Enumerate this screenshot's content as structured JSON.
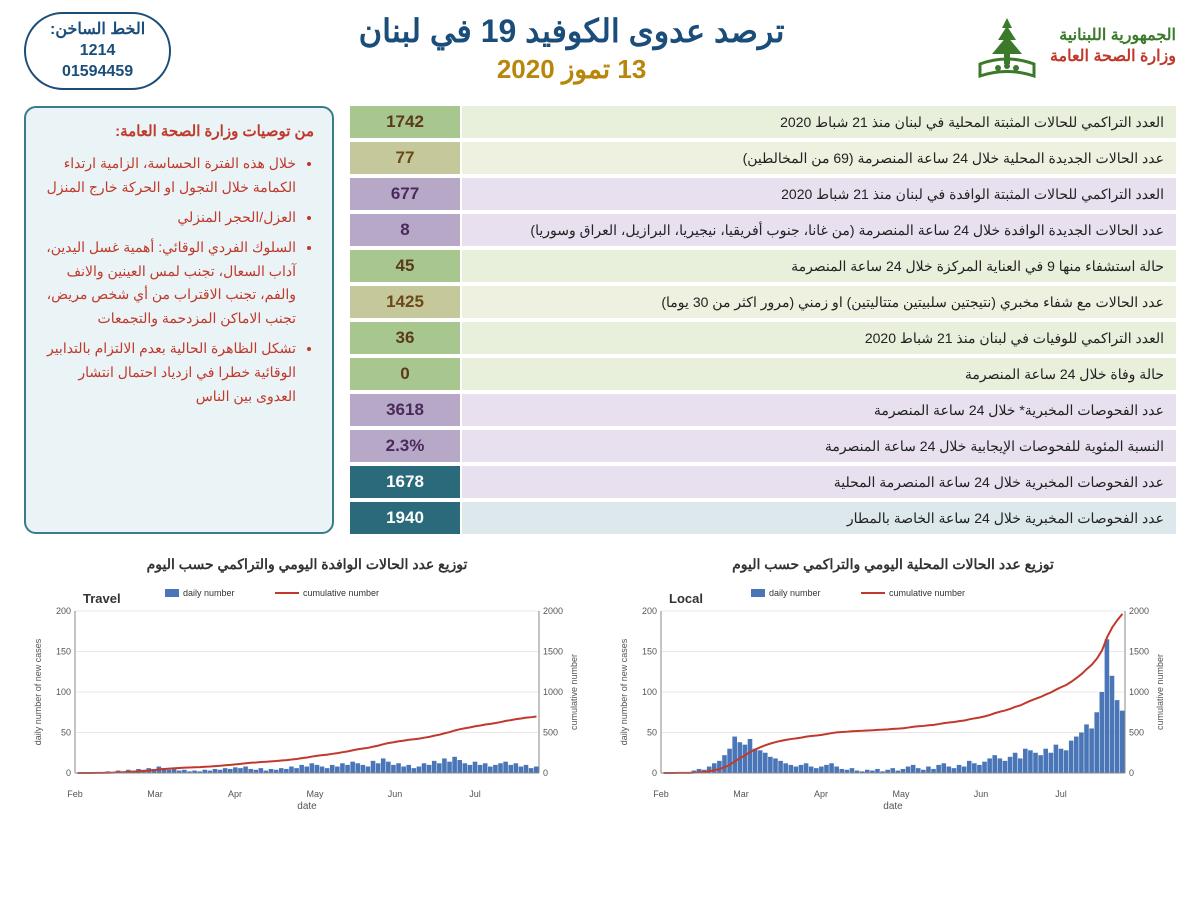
{
  "header": {
    "org_line1": "الجمهورية اللبنانية",
    "org_line2": "وزارة الصحة العامة",
    "title": "ترصد عدوى الكوفيد 19 في لبنان",
    "date": "13 تموز 2020",
    "hotline_label": "الخط الساخن:",
    "hotline_n1": "1214",
    "hotline_n2": "01594459",
    "logo_color": "#3b7a2a"
  },
  "stats": [
    {
      "val": "1742",
      "lbl": "العدد التراكمي للحالات المثبتة المحلية في لبنان منذ 21 شباط 2020",
      "vc": "c-green-d",
      "lc": "c-green-l"
    },
    {
      "val": "77",
      "lbl": "عدد الحالات الجديدة المحلية خلال 24 ساعة المنصرمة  (69 من المخالطين)",
      "vc": "c-olive-d",
      "lc": "c-olive-l"
    },
    {
      "val": "677",
      "lbl": "العدد التراكمي للحالات المثبتة الوافدة في لبنان منذ 21 شباط 2020",
      "vc": "c-purple-d",
      "lc": "c-purple-l"
    },
    {
      "val": "8",
      "lbl": "عدد الحالات الجديدة الوافدة خلال 24 ساعة المنصرمة (من غانا، جنوب أفريقيا، نيجيريا، البرازيل، العراق وسوريا)",
      "vc": "c-purple-d",
      "lc": "c-purple-l"
    },
    {
      "val": "45",
      "lbl": "حالة استشفاء منها  9 في العناية المركزة خلال 24 ساعة المنصرمة",
      "vc": "c-green-d",
      "lc": "c-green-l"
    },
    {
      "val": "1425",
      "lbl": "عدد الحالات مع شفاء مخبري (نتيجتين سلبيتين متتاليتين) او زمني (مرور اكثر من 30 يوما)",
      "vc": "c-olive-d",
      "lc": "c-olive-l"
    },
    {
      "val": "36",
      "lbl": "العدد التراكمي للوفيات في لبنان منذ 21 شباط  2020",
      "vc": "c-green-d",
      "lc": "c-green-l"
    },
    {
      "val": "0",
      "lbl": "حالة وفاة خلال 24 ساعة المنصرمة",
      "vc": "c-green-d",
      "lc": "c-green-l"
    },
    {
      "val": "3618",
      "lbl": "عدد الفحوصات المخبرية* خلال 24 ساعة المنصرمة",
      "vc": "c-purple-d",
      "lc": "c-purple-l"
    },
    {
      "val": "2.3%",
      "lbl": "النسبة المئوية للفحوصات الإيجابية خلال 24 ساعة المنصرمة",
      "vc": "c-purple-d",
      "lc": "c-purple-l"
    },
    {
      "val": "1678",
      "lbl": "عدد الفحوصات المخبرية خلال 24 ساعة المنصرمة المحلية",
      "vc": "c-teal-d",
      "lc": "c-purple-l"
    },
    {
      "val": "1940",
      "lbl": "عدد الفحوصات المخبرية خلال 24 ساعة الخاصة بالمطار",
      "vc": "c-teal-d",
      "lc": "c-teal-l"
    }
  ],
  "tips": {
    "title": "من توصيات وزارة الصحة العامة:",
    "items": [
      "خلال هذه الفترة الحساسة، الزامية ارتداء الكمامة خلال التجول او الحركة خارج المنزل",
      "العزل/الحجر المنزلي",
      "السلوك الفردي الوقائي: أهمية غسل اليدين، آداب السعال، تجنب لمس العينين والانف والفم، تجنب الاقتراب من أي شخص مريض، تجنب الاماكن المزدحمة والتجمعات",
      "تشكل الظاهرة الحالية بعدم الالتزام بالتدابير الوقائية خطرا في ازدياد احتمال انتشار العدوى بين الناس"
    ]
  },
  "charts": {
    "right_title": "توزيع عدد الحالات المحلية اليومي والتراكمي حسب اليوم",
    "left_title": "توزيع عدد الحالات الوافدة اليومي والتراكمي حسب اليوم",
    "legend_daily": "daily number",
    "legend_cum": "cumulative number",
    "panel_local": "Local",
    "panel_travel": "Travel",
    "y1_label": "daily number of new cases",
    "y2_label": "cumulative number",
    "x_label": "date",
    "y1_ticks": [
      0,
      50,
      100,
      150,
      200
    ],
    "y2_ticks": [
      0,
      500,
      1000,
      1500,
      2000
    ],
    "x_months": [
      "Feb",
      "Mar",
      "Apr",
      "May",
      "Jun",
      "Jul"
    ],
    "bar_color": "#4a76b8",
    "line_color": "#c0392b",
    "grid_color": "#d0d0d0",
    "axis_fontsize": 9,
    "local": {
      "daily": [
        0,
        0,
        0,
        1,
        0,
        1,
        3,
        5,
        4,
        8,
        12,
        15,
        22,
        30,
        45,
        38,
        35,
        42,
        30,
        28,
        25,
        20,
        18,
        15,
        12,
        10,
        8,
        10,
        12,
        8,
        6,
        8,
        10,
        12,
        8,
        5,
        4,
        6,
        3,
        2,
        4,
        3,
        5,
        2,
        4,
        6,
        3,
        5,
        8,
        10,
        6,
        4,
        8,
        5,
        10,
        12,
        8,
        6,
        10,
        8,
        15,
        12,
        10,
        14,
        18,
        22,
        18,
        15,
        20,
        25,
        18,
        30,
        28,
        25,
        22,
        30,
        25,
        35,
        30,
        28,
        40,
        45,
        50,
        60,
        55,
        75,
        100,
        165,
        120,
        90,
        77
      ],
      "cumulative_max": 1742
    },
    "travel": {
      "daily": [
        0,
        0,
        0,
        0,
        1,
        0,
        2,
        1,
        3,
        2,
        4,
        3,
        5,
        4,
        6,
        5,
        8,
        6,
        4,
        5,
        3,
        4,
        2,
        3,
        2,
        4,
        3,
        5,
        4,
        6,
        5,
        7,
        6,
        8,
        5,
        4,
        6,
        3,
        5,
        4,
        6,
        5,
        8,
        6,
        10,
        8,
        12,
        10,
        8,
        6,
        10,
        8,
        12,
        10,
        14,
        12,
        10,
        8,
        15,
        12,
        18,
        14,
        10,
        12,
        8,
        10,
        6,
        8,
        12,
        10,
        15,
        12,
        18,
        14,
        20,
        16,
        12,
        10,
        14,
        10,
        12,
        8,
        10,
        12,
        14,
        10,
        12,
        8,
        10,
        6,
        8
      ],
      "cumulative_max": 677
    }
  }
}
